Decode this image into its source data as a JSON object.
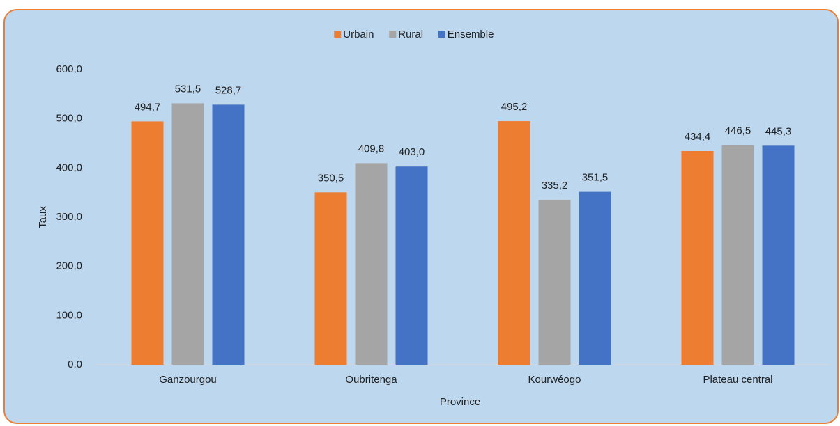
{
  "chart_data": {
    "type": "bar",
    "xlabel": "Province",
    "ylabel": "Taux",
    "categories": [
      "Ganzourgou",
      "Oubritenga",
      "Kourwéogo",
      "Plateau central"
    ],
    "series": [
      {
        "name": "Urbain",
        "color": "#ed7d31",
        "values": [
          494.7,
          350.5,
          495.2,
          434.4
        ],
        "value_labels": [
          "494,7",
          "350,5",
          "495,2",
          "434,4"
        ]
      },
      {
        "name": "Rural",
        "color": "#a5a5a5",
        "values": [
          531.5,
          409.8,
          335.2,
          446.5
        ],
        "value_labels": [
          "531,5",
          "409,8",
          "335,2",
          "446,5"
        ]
      },
      {
        "name": "Ensemble",
        "color": "#4472c4",
        "values": [
          528.7,
          403.0,
          351.5,
          445.3
        ],
        "value_labels": [
          "528,7",
          "403,0",
          "351,5",
          "445,3"
        ]
      }
    ],
    "ylim": [
      0,
      600
    ],
    "yticks": [
      {
        "value": 0,
        "label": "0,0"
      },
      {
        "value": 100,
        "label": "100,0"
      },
      {
        "value": 200,
        "label": "200,0"
      },
      {
        "value": 300,
        "label": "300,0"
      },
      {
        "value": 400,
        "label": "400,0"
      },
      {
        "value": 500,
        "label": "500,0"
      },
      {
        "value": 600,
        "label": "600,0"
      }
    ],
    "legend": "top",
    "grid": false
  }
}
